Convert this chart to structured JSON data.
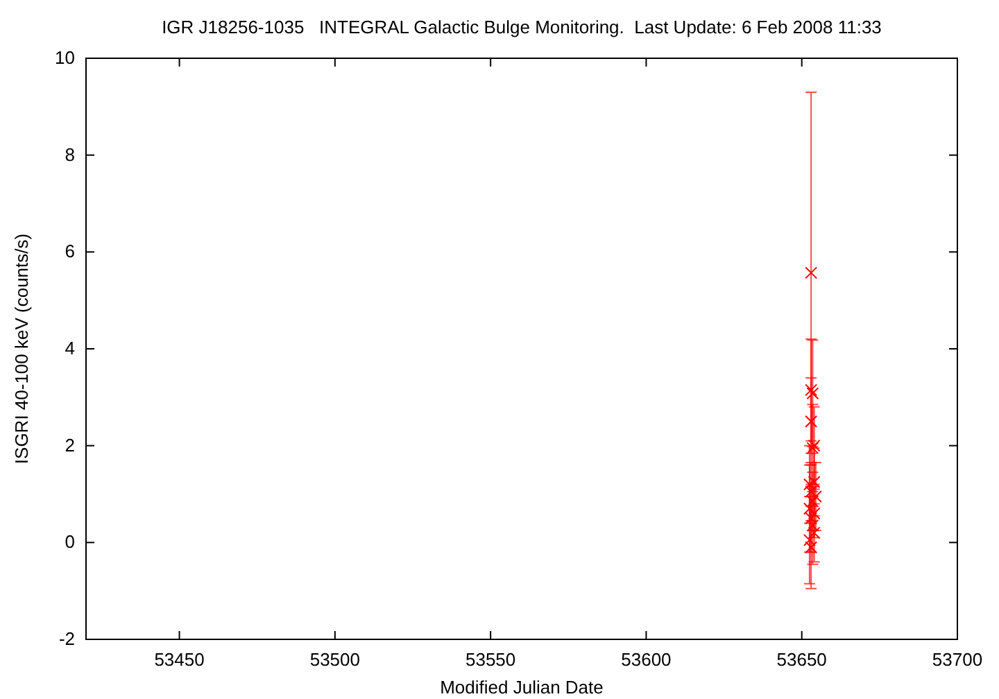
{
  "chart_data": {
    "type": "scatter",
    "title": "IGR J18256-1035   INTEGRAL Galactic Bulge Monitoring.  Last Update: 6 Feb 2008 11:33",
    "xlabel": "Modified Julian Date",
    "ylabel": "ISGRI 40-100 keV (counts/s)",
    "x": [
      53653.0,
      53653.0,
      53653.5,
      53653.0,
      53654.0,
      53653.5,
      53654.0,
      53652.5,
      53653.0,
      53654.5,
      53653.5,
      53652.5,
      53654.0,
      53653.0,
      53653.5,
      53654.0,
      53652.5,
      53653.0
    ],
    "values": [
      5.57,
      3.15,
      3.08,
      2.5,
      2.0,
      1.95,
      1.25,
      1.2,
      1.05,
      0.95,
      0.85,
      0.7,
      0.6,
      0.5,
      0.35,
      0.2,
      0.05,
      -0.1
    ],
    "errors": [
      3.73,
      1.05,
      1.1,
      0.9,
      0.8,
      0.9,
      0.7,
      0.8,
      0.6,
      0.7,
      0.6,
      0.9,
      0.5,
      0.7,
      0.8,
      0.6,
      0.9,
      0.85
    ],
    "color": "#ff0000",
    "marker": "cross",
    "grid": false,
    "xlim": [
      53420,
      53700
    ],
    "xticks": [
      53450,
      53500,
      53550,
      53600,
      53650,
      53700
    ],
    "ylim": [
      -2,
      10
    ],
    "yticks": [
      -2,
      0,
      2,
      4,
      6,
      8,
      10
    ]
  }
}
